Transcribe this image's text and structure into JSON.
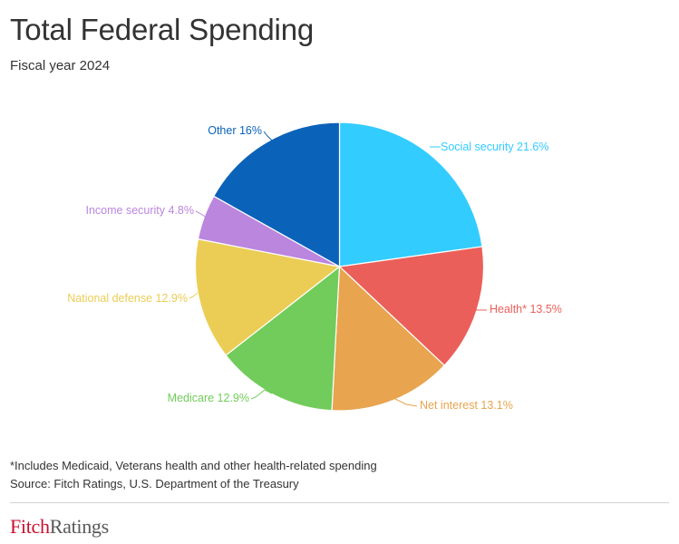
{
  "header": {
    "title": "Total Federal Spending",
    "subtitle": "Fiscal year 2024"
  },
  "chart_data": {
    "type": "pie",
    "title": "Total Federal Spending",
    "subtitle": "Fiscal year 2024",
    "start_angle_deg": 0,
    "direction": "clockwise",
    "slices": [
      {
        "name": "Social security",
        "value": 21.6,
        "label": "Social security 21.6%",
        "color": "#33ccff"
      },
      {
        "name": "Health*",
        "value": 13.5,
        "label": "Health* 13.5%",
        "color": "#eb5f5a"
      },
      {
        "name": "Net interest",
        "value": 13.1,
        "label": "Net interest 13.1%",
        "color": "#e8a44e"
      },
      {
        "name": "Medicare",
        "value": 12.9,
        "label": "Medicare 12.9%",
        "color": "#72cc5b"
      },
      {
        "name": "National defense",
        "value": 12.9,
        "label": "National defense 12.9%",
        "color": "#ebcd55"
      },
      {
        "name": "Income security",
        "value": 4.8,
        "label": "Income security 4.8%",
        "color": "#bb86de"
      },
      {
        "name": "Other",
        "value": 16,
        "label": "Other 16%",
        "color": "#0b62b9"
      }
    ]
  },
  "footer": {
    "footnote": "*Includes Medicaid, Veterans health and other health-related spending",
    "source": "Source: Fitch Ratings, U.S. Department of the Treasury",
    "logo_fitch": "Fitch",
    "logo_ratings": "Ratings"
  }
}
